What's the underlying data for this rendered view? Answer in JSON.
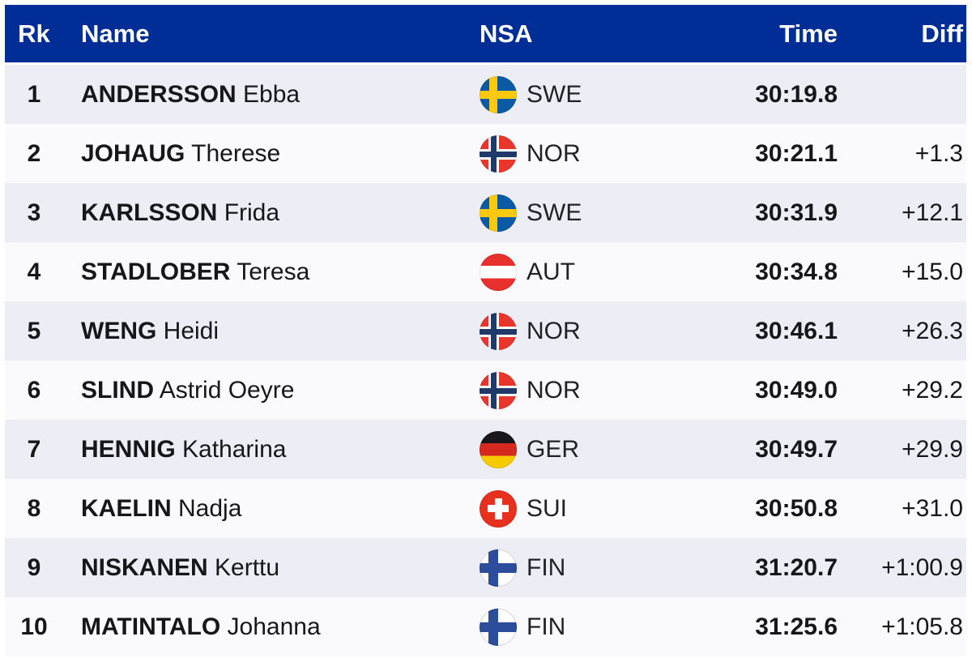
{
  "table": {
    "columns": {
      "rank": "Rk",
      "name": "Name",
      "nsa": "NSA",
      "time": "Time",
      "diff": "Diff"
    },
    "rows": [
      {
        "rank": "1",
        "last_name": "ANDERSSON",
        "first_name": "Ebba",
        "nsa": "SWE",
        "flag": "swe",
        "time": "30:19.8",
        "diff": ""
      },
      {
        "rank": "2",
        "last_name": "JOHAUG",
        "first_name": "Therese",
        "nsa": "NOR",
        "flag": "nor",
        "time": "30:21.1",
        "diff": "+1.3"
      },
      {
        "rank": "3",
        "last_name": "KARLSSON",
        "first_name": "Frida",
        "nsa": "SWE",
        "flag": "swe",
        "time": "30:31.9",
        "diff": "+12.1"
      },
      {
        "rank": "4",
        "last_name": "STADLOBER",
        "first_name": "Teresa",
        "nsa": "AUT",
        "flag": "aut",
        "time": "30:34.8",
        "diff": "+15.0"
      },
      {
        "rank": "5",
        "last_name": "WENG",
        "first_name": "Heidi",
        "nsa": "NOR",
        "flag": "nor",
        "time": "30:46.1",
        "diff": "+26.3"
      },
      {
        "rank": "6",
        "last_name": "SLIND",
        "first_name": "Astrid Oeyre",
        "nsa": "NOR",
        "flag": "nor",
        "time": "30:49.0",
        "diff": "+29.2"
      },
      {
        "rank": "7",
        "last_name": "HENNIG",
        "first_name": "Katharina",
        "nsa": "GER",
        "flag": "ger",
        "time": "30:49.7",
        "diff": "+29.9"
      },
      {
        "rank": "8",
        "last_name": "KAELIN",
        "first_name": "Nadja",
        "nsa": "SUI",
        "flag": "sui",
        "time": "30:50.8",
        "diff": "+31.0"
      },
      {
        "rank": "9",
        "last_name": "NISKANEN",
        "first_name": "Kerttu",
        "nsa": "FIN",
        "flag": "fin",
        "time": "31:20.7",
        "diff": "+1:00.9"
      },
      {
        "rank": "10",
        "last_name": "MATINTALO",
        "first_name": "Johanna",
        "nsa": "FIN",
        "flag": "fin",
        "time": "31:25.6",
        "diff": "+1:05.8"
      }
    ]
  },
  "colors": {
    "header_bg": "#002d96",
    "header_text": "#ffffff",
    "row_odd": "#edeef5",
    "row_even": "#fafafc",
    "text": "#17171a"
  }
}
